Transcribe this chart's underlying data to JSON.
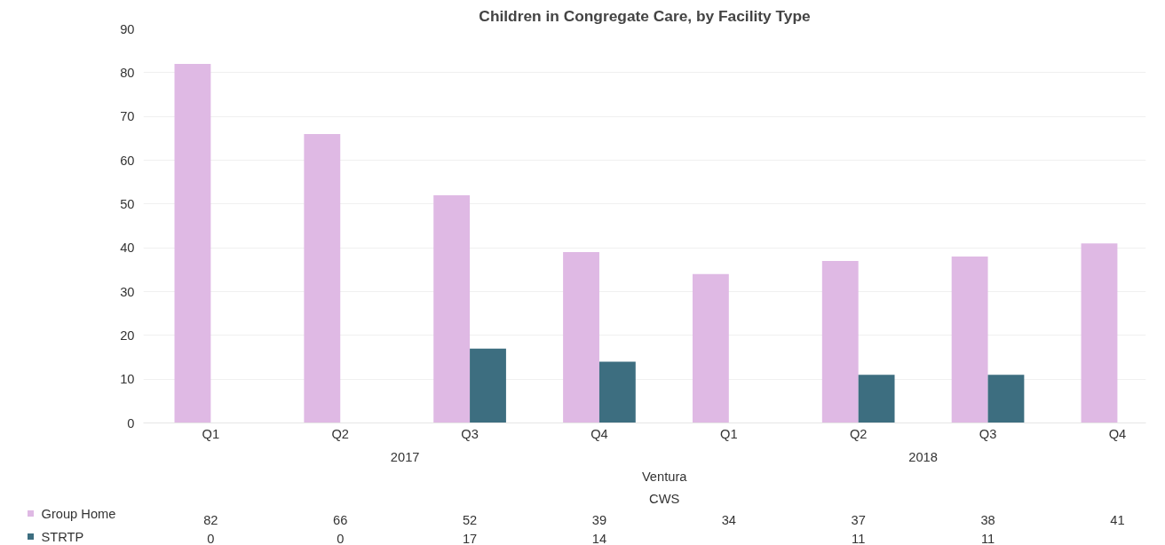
{
  "chart_data": {
    "type": "bar",
    "title": "Children in Congregate Care, by Facility Type",
    "categories": [
      "Q1",
      "Q2",
      "Q3",
      "Q4",
      "Q1",
      "Q2",
      "Q3",
      "Q4"
    ],
    "series": [
      {
        "name": "Group Home",
        "color": "#dfb9e4",
        "values": [
          82,
          66,
          52,
          39,
          34,
          37,
          38,
          41
        ]
      },
      {
        "name": "STRTP",
        "color": "#3d6e80",
        "values": [
          0,
          0,
          17,
          14,
          null,
          11,
          11,
          null
        ]
      }
    ],
    "annotations": [
      "2017",
      "2018",
      "Ventura",
      "CWS"
    ],
    "ylim": [
      0,
      90
    ],
    "yticks": [
      0,
      10,
      20,
      30,
      40,
      50,
      60,
      70,
      80,
      90
    ],
    "grid": "y",
    "legend": "bottom left",
    "data_labels": true
  }
}
